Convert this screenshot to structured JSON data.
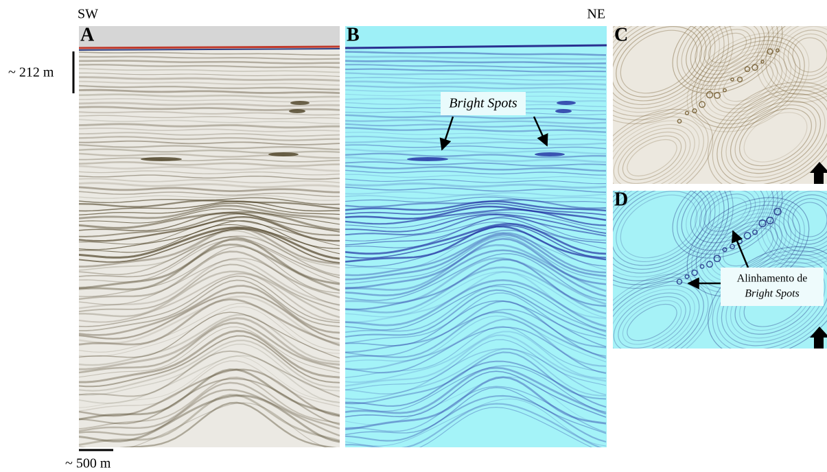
{
  "orientation": {
    "left": "SW",
    "right": "NE"
  },
  "panels": [
    {
      "label": "A"
    },
    {
      "label": "B"
    },
    {
      "label": "C"
    },
    {
      "label": "D"
    }
  ],
  "scale": {
    "vertical": "~ 212 m",
    "horizontal": "~ 500 m"
  },
  "annotations": {
    "bright_spots": "Bright Spots",
    "alignment": {
      "line1": "Alinhamento de",
      "line2": "Bright Spots"
    }
  }
}
